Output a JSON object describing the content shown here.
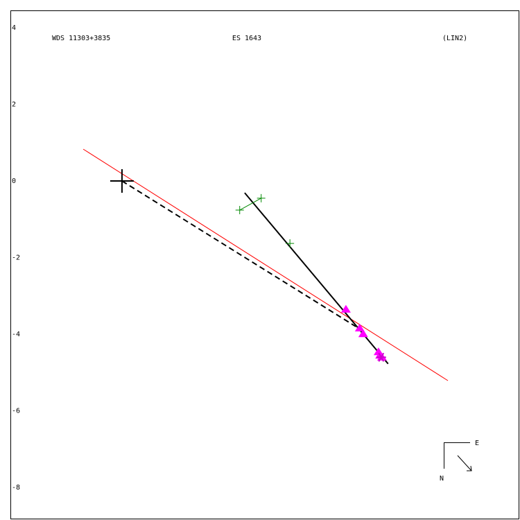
{
  "chart_data": {
    "type": "scatter",
    "header": [
      "WDS 11303+3835",
      "ES 1643",
      "(LIN2)"
    ],
    "compass": {
      "east": "E",
      "north": "N"
    },
    "xlim": [
      -2.91,
      10.38
    ],
    "ylim": [
      -8.81,
      4.45
    ],
    "yticks": [
      4,
      2,
      0,
      -2,
      -4,
      -6,
      -8
    ],
    "grid": false,
    "series": [
      {
        "kind": "line",
        "color": "#ff0000",
        "dash": false,
        "x": [
          -1.01,
          8.5
        ],
        "values": [
          0.83,
          -5.21
        ]
      },
      {
        "kind": "line",
        "color": "#000000",
        "dash": true,
        "x": [
          0,
          6.1
        ],
        "values": [
          0,
          -3.8
        ]
      },
      {
        "kind": "line",
        "color": "#000000",
        "dash": false,
        "x": [
          3.2,
          6.94
        ],
        "values": [
          -0.31,
          -4.77
        ]
      },
      {
        "kind": "line",
        "color": "#008800",
        "dash": false,
        "x": [
          3.07,
          3.63
        ],
        "values": [
          -0.76,
          -0.45
        ]
      },
      {
        "kind": "marker",
        "marker": "plus",
        "size": 6,
        "color": "#008800",
        "x": [
          3.07,
          3.63,
          4.38
        ],
        "values": [
          -0.76,
          -0.45,
          -1.63
        ]
      },
      {
        "kind": "marker",
        "marker": "triangle",
        "size": 7,
        "color": "#ff00ff",
        "x": [
          5.84,
          6.2,
          6.29,
          6.69,
          6.73,
          6.78
        ],
        "values": [
          -3.36,
          -3.85,
          -4.0,
          -4.47,
          -4.56,
          -4.61
        ]
      },
      {
        "kind": "marker",
        "marker": "star",
        "size": 7,
        "color": "#cc00cc",
        "x": [
          6.76
        ],
        "values": [
          -4.6
        ]
      },
      {
        "kind": "marker",
        "marker": "plus",
        "size": 17,
        "color": "#000000",
        "x": [
          0
        ],
        "values": [
          0
        ]
      }
    ]
  }
}
